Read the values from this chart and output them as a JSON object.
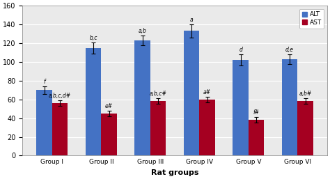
{
  "groups": [
    "Group I",
    "Group II",
    "Group III",
    "Group IV",
    "Group V",
    "Group VI"
  ],
  "alt_values": [
    70,
    115,
    123,
    133,
    102,
    103
  ],
  "ast_values": [
    56,
    45,
    58,
    60,
    38,
    58
  ],
  "alt_errors": [
    4,
    6,
    5,
    7,
    6,
    5
  ],
  "ast_errors": [
    3,
    3,
    3,
    3,
    3,
    3
  ],
  "alt_color": "#4472C4",
  "ast_color": "#A50021",
  "alt_labels_above": [
    "f",
    "b,c",
    "a,b",
    "a",
    "d",
    "d,e"
  ],
  "ast_labels_above": [
    "a,b,c,d#",
    "e#",
    "a,b,c#",
    "a#",
    "f#",
    "a,b#"
  ],
  "xlabel": "Rat groups",
  "ylim": [
    0,
    160
  ],
  "yticks": [
    0,
    20,
    40,
    60,
    80,
    100,
    120,
    140,
    160
  ],
  "legend_labels": [
    "ALT",
    "AST"
  ],
  "bg_color": "#ffffff"
}
